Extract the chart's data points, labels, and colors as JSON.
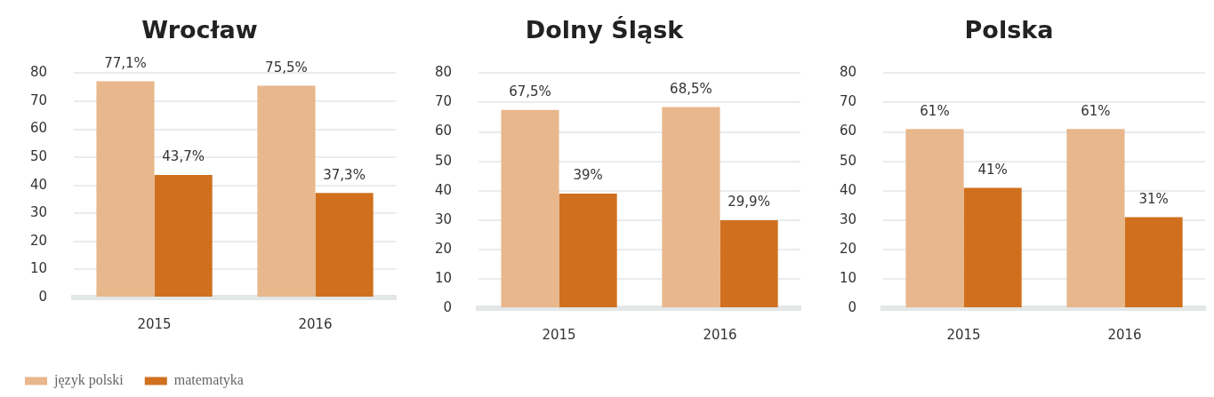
{
  "chart_data": [
    {
      "type": "bar",
      "title": "Wrocław",
      "categories": [
        "2015",
        "2016"
      ],
      "ylim": [
        0,
        80
      ],
      "yticks": [
        0,
        10,
        20,
        30,
        40,
        50,
        60,
        70,
        80
      ],
      "grid": "y",
      "legend": "bottom",
      "series": [
        {
          "name": "język polski",
          "color": "#e8b78c",
          "values": [
            77.1,
            75.5
          ],
          "value_labels": [
            "77,1%",
            "75,5%"
          ]
        },
        {
          "name": "matematyka",
          "color": "#d0701e",
          "values": [
            43.7,
            37.3
          ],
          "value_labels": [
            "43,7%",
            "37,3%"
          ]
        }
      ]
    },
    {
      "type": "bar",
      "title": "Dolny Śląsk",
      "categories": [
        "2015",
        "2016"
      ],
      "ylim": [
        0,
        80
      ],
      "yticks": [
        0,
        10,
        20,
        30,
        40,
        50,
        60,
        70,
        80
      ],
      "grid": "y",
      "series": [
        {
          "color": "#e8b78c",
          "values": [
            67.5,
            68.5
          ],
          "value_labels": [
            "67,5%",
            "68,5%"
          ]
        },
        {
          "color": "#d0701e",
          "values": [
            39,
            29.9
          ],
          "value_labels": [
            "39%",
            "29,9%"
          ]
        }
      ]
    },
    {
      "type": "bar",
      "title": "Polska",
      "categories": [
        "2015",
        "2016"
      ],
      "ylim": [
        0,
        80
      ],
      "yticks": [
        0,
        10,
        20,
        30,
        40,
        50,
        60,
        70,
        80
      ],
      "grid": "y",
      "series": [
        {
          "color": "#e8b78c",
          "values": [
            61,
            61
          ],
          "value_labels": [
            "61%",
            "61%"
          ]
        },
        {
          "color": "#d0701e",
          "values": [
            41,
            31
          ],
          "value_labels": [
            "41%",
            "31%"
          ]
        }
      ]
    }
  ]
}
